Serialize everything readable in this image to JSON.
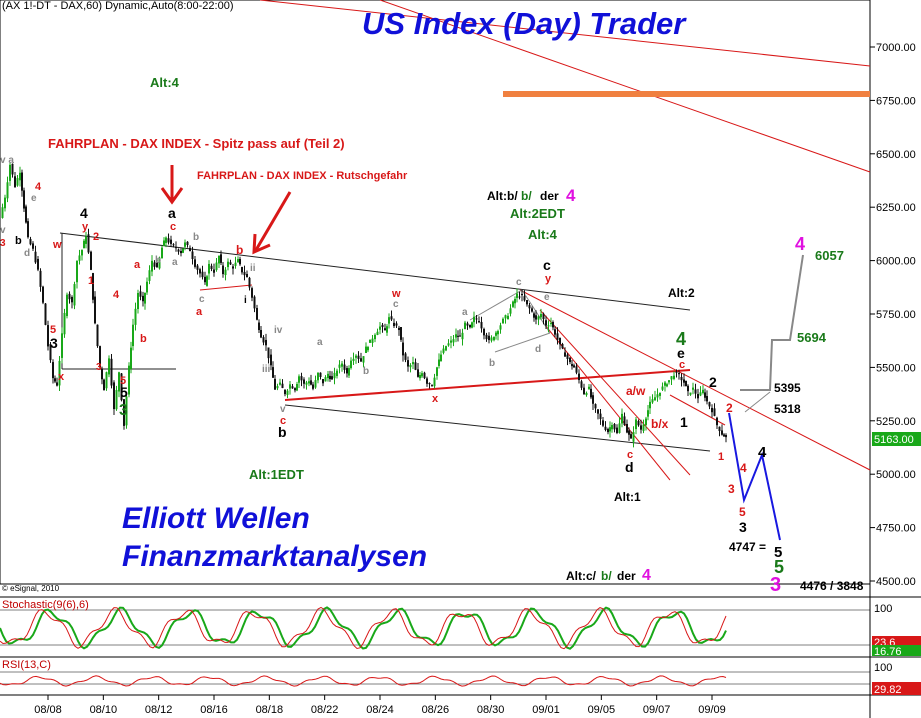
{
  "header": {
    "info": "(AX 1!-DT - DAX,60) Dynamic,Auto(8:00-22:00)",
    "title": "US Index (Day) Trader",
    "copyright": "© eSignal, 2010"
  },
  "branding": {
    "line1": "Elliott Wellen",
    "line2": "Finanzmarktanalysen"
  },
  "annotations": {
    "fahrplan_1": "FAHRPLAN - DAX INDEX - Spitz pass auf (Teil 2)",
    "fahrplan_2": "FAHRPLAN - DAX INDEX - Rutschgefahr"
  },
  "colors": {
    "bull": "#19a819",
    "bear": "#111111",
    "title_blue": "#1010d8",
    "red": "#d81818",
    "green_label": "#1a7a1a",
    "magenta": "#e010e0",
    "orange": "#f08040",
    "projection_blue": "#1818e0",
    "projection_grey": "#808080"
  },
  "panels": {
    "stochastic": {
      "label": "Stochastic(9(6),6)",
      "value1": "23.6",
      "value2": "16.76",
      "levels": [
        "100"
      ]
    },
    "rsi": {
      "label": "RSI(13,C)",
      "value": "29.82",
      "levels": [
        "100"
      ]
    }
  },
  "chart_data": {
    "type": "candlestick",
    "x_ticks": [
      "08/08",
      "08/10",
      "08/12",
      "08/16",
      "08/18",
      "08/22",
      "08/24",
      "08/26",
      "08/30",
      "09/01",
      "09/05",
      "09/07",
      "09/09"
    ],
    "y_ticks": [
      "7000.00",
      "6750.00",
      "6500.00",
      "6250.00",
      "6000.00",
      "5750.00",
      "5500.00",
      "5250.00",
      "5000.00",
      "4750.00",
      "4500.00"
    ],
    "ylim": [
      4470,
      7090
    ],
    "last_price": "5163.00",
    "price_path": [
      [
        0,
        6200
      ],
      [
        5,
        6300
      ],
      [
        10,
        6450
      ],
      [
        15,
        6350
      ],
      [
        20,
        6420
      ],
      [
        24,
        6250
      ],
      [
        28,
        6100
      ],
      [
        33,
        6050
      ],
      [
        38,
        5950
      ],
      [
        43,
        5800
      ],
      [
        48,
        5600
      ],
      [
        53,
        5450
      ],
      [
        57,
        5420
      ],
      [
        62,
        5650
      ],
      [
        67,
        5850
      ],
      [
        72,
        5800
      ],
      [
        77,
        6000
      ],
      [
        82,
        6050
      ],
      [
        86,
        6120
      ],
      [
        91,
        5950
      ],
      [
        95,
        5700
      ],
      [
        100,
        5500
      ],
      [
        104,
        5400
      ],
      [
        109,
        5550
      ],
      [
        114,
        5300
      ],
      [
        119,
        5480
      ],
      [
        124,
        5230
      ],
      [
        129,
        5500
      ],
      [
        133,
        5700
      ],
      [
        138,
        5850
      ],
      [
        143,
        5800
      ],
      [
        147,
        5900
      ],
      [
        152,
        6000
      ],
      [
        157,
        5960
      ],
      [
        162,
        6060
      ],
      [
        166,
        6110
      ],
      [
        171,
        6070
      ],
      [
        176,
        6060
      ],
      [
        181,
        6040
      ],
      [
        185,
        6080
      ],
      [
        190,
        6050
      ],
      [
        195,
        5980
      ],
      [
        200,
        5940
      ],
      [
        205,
        5890
      ],
      [
        209,
        5980
      ],
      [
        214,
        5950
      ],
      [
        219,
        6020
      ],
      [
        223,
        5940
      ],
      [
        228,
        5990
      ],
      [
        233,
        5970
      ],
      [
        238,
        6000
      ],
      [
        242,
        5950
      ],
      [
        247,
        5920
      ],
      [
        252,
        5830
      ],
      [
        257,
        5720
      ],
      [
        261,
        5650
      ],
      [
        266,
        5600
      ],
      [
        271,
        5500
      ],
      [
        275,
        5400
      ],
      [
        280,
        5420
      ],
      [
        285,
        5380
      ],
      [
        290,
        5420
      ],
      [
        295,
        5400
      ],
      [
        299,
        5460
      ],
      [
        304,
        5420
      ],
      [
        309,
        5440
      ],
      [
        313,
        5400
      ],
      [
        318,
        5470
      ],
      [
        323,
        5430
      ],
      [
        328,
        5470
      ],
      [
        332,
        5440
      ],
      [
        337,
        5490
      ],
      [
        342,
        5520
      ],
      [
        347,
        5470
      ],
      [
        351,
        5540
      ],
      [
        356,
        5560
      ],
      [
        361,
        5530
      ],
      [
        366,
        5590
      ],
      [
        370,
        5620
      ],
      [
        375,
        5660
      ],
      [
        380,
        5690
      ],
      [
        385,
        5670
      ],
      [
        389,
        5730
      ],
      [
        394,
        5700
      ],
      [
        399,
        5680
      ],
      [
        403,
        5560
      ],
      [
        408,
        5500
      ],
      [
        413,
        5520
      ],
      [
        418,
        5450
      ],
      [
        422,
        5480
      ],
      [
        427,
        5430
      ],
      [
        432,
        5420
      ],
      [
        437,
        5500
      ],
      [
        441,
        5560
      ],
      [
        446,
        5600
      ],
      [
        451,
        5620
      ],
      [
        456,
        5650
      ],
      [
        460,
        5640
      ],
      [
        465,
        5700
      ],
      [
        470,
        5680
      ],
      [
        474,
        5730
      ],
      [
        479,
        5720
      ],
      [
        484,
        5660
      ],
      [
        489,
        5620
      ],
      [
        494,
        5650
      ],
      [
        498,
        5680
      ],
      [
        503,
        5720
      ],
      [
        508,
        5750
      ],
      [
        513,
        5800
      ],
      [
        517,
        5840
      ],
      [
        522,
        5830
      ],
      [
        527,
        5790
      ],
      [
        532,
        5760
      ],
      [
        536,
        5720
      ],
      [
        541,
        5750
      ],
      [
        546,
        5700
      ],
      [
        551,
        5710
      ],
      [
        555,
        5660
      ],
      [
        560,
        5600
      ],
      [
        565,
        5560
      ],
      [
        570,
        5520
      ],
      [
        574,
        5500
      ],
      [
        579,
        5440
      ],
      [
        584,
        5380
      ],
      [
        589,
        5400
      ],
      [
        593,
        5320
      ],
      [
        598,
        5280
      ],
      [
        603,
        5230
      ],
      [
        608,
        5200
      ],
      [
        612,
        5240
      ],
      [
        617,
        5190
      ],
      [
        622,
        5280
      ],
      [
        627,
        5200
      ],
      [
        631,
        5160
      ],
      [
        636,
        5250
      ],
      [
        641,
        5210
      ],
      [
        646,
        5270
      ],
      [
        650,
        5330
      ],
      [
        655,
        5360
      ],
      [
        660,
        5390
      ],
      [
        665,
        5420
      ],
      [
        669,
        5440
      ],
      [
        674,
        5470
      ],
      [
        679,
        5460
      ],
      [
        684,
        5430
      ],
      [
        688,
        5380
      ],
      [
        693,
        5400
      ],
      [
        698,
        5360
      ],
      [
        703,
        5390
      ],
      [
        707,
        5340
      ],
      [
        712,
        5300
      ],
      [
        717,
        5230
      ],
      [
        722,
        5190
      ],
      [
        726,
        5170
      ]
    ]
  }
}
